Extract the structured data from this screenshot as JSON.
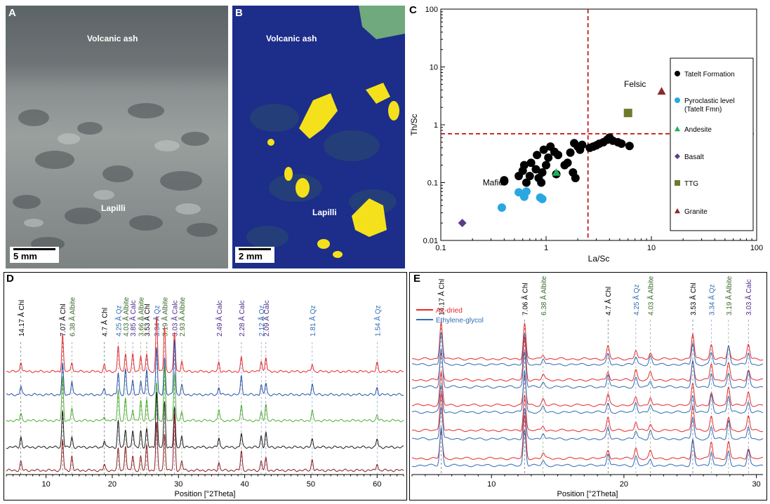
{
  "panels": {
    "a": {
      "letter": "A",
      "top_label": "Volcanic ash",
      "bottom_label": "Lapilli",
      "scale": "5 mm"
    },
    "b": {
      "letter": "B",
      "top_label": "Volcanic ash",
      "bottom_label": "Lapilli",
      "scale": "2 mm"
    },
    "c": {
      "letter": "C"
    },
    "d": {
      "letter": "D"
    },
    "e": {
      "letter": "E"
    }
  },
  "chart_data": [
    {
      "id": "C",
      "type": "scatter",
      "title": "",
      "xlabel": "La/Sc",
      "ylabel": "Th/Sc",
      "xscale": "log",
      "yscale": "log",
      "xlim": [
        0.1,
        100
      ],
      "ylim": [
        0.01,
        100
      ],
      "xticks": [
        "0.1",
        "1",
        "10",
        "100"
      ],
      "yticks": [
        "0.01",
        "0.1",
        "1",
        "10",
        "100"
      ],
      "reference_lines": {
        "x": 2.5,
        "y": 0.7,
        "style": "dashed",
        "color": "#c00000"
      },
      "annotations": [
        "Mafic",
        "Felsic"
      ],
      "legend_position": "right",
      "series": [
        {
          "name": "Tatelt Formation",
          "marker": "circle",
          "color": "#000000",
          "points": [
            [
              0.4,
              0.105
            ],
            [
              0.4,
              0.11
            ],
            [
              0.55,
              0.13
            ],
            [
              0.6,
              0.16
            ],
            [
              0.62,
              0.2
            ],
            [
              0.65,
              0.1
            ],
            [
              0.7,
              0.13
            ],
            [
              0.72,
              0.22
            ],
            [
              0.8,
              0.17
            ],
            [
              0.82,
              0.3
            ],
            [
              0.85,
              0.12
            ],
            [
              0.9,
              0.1
            ],
            [
              0.92,
              0.15
            ],
            [
              0.95,
              0.37
            ],
            [
              1.0,
              0.2
            ],
            [
              1.05,
              0.27
            ],
            [
              1.1,
              0.42
            ],
            [
              1.2,
              0.34
            ],
            [
              1.25,
              0.14
            ],
            [
              1.3,
              0.3
            ],
            [
              1.5,
              0.2
            ],
            [
              1.6,
              0.22
            ],
            [
              1.7,
              0.33
            ],
            [
              1.8,
              0.15
            ],
            [
              1.9,
              0.12
            ],
            [
              1.85,
              0.48
            ],
            [
              2.0,
              0.42
            ],
            [
              2.1,
              0.37
            ],
            [
              2.2,
              0.45
            ],
            [
              2.6,
              0.4
            ],
            [
              2.8,
              0.42
            ],
            [
              3.0,
              0.44
            ],
            [
              3.2,
              0.47
            ],
            [
              3.5,
              0.5
            ],
            [
              3.8,
              0.55
            ],
            [
              4.0,
              0.6
            ],
            [
              4.3,
              0.53
            ],
            [
              4.8,
              0.5
            ],
            [
              5.2,
              0.47
            ],
            [
              6.2,
              0.43
            ]
          ]
        },
        {
          "name": "Pyroclastic level (Tatelt Fmn)",
          "marker": "circle",
          "color": "#29a7e1",
          "points": [
            [
              0.38,
              0.037
            ],
            [
              0.55,
              0.068
            ],
            [
              0.62,
              0.057
            ],
            [
              0.65,
              0.07
            ],
            [
              0.88,
              0.055
            ],
            [
              0.92,
              0.052
            ]
          ]
        },
        {
          "name": "Andesite",
          "marker": "triangle",
          "color": "#1fb25a",
          "points": [
            [
              1.25,
              0.15
            ]
          ]
        },
        {
          "name": "Basalt",
          "marker": "diamond",
          "color": "#5b3c88",
          "points": [
            [
              0.16,
              0.02
            ]
          ]
        },
        {
          "name": "TTG",
          "marker": "square",
          "color": "#6b7b2a",
          "points": [
            [
              6.0,
              1.6
            ]
          ]
        },
        {
          "name": "Granite",
          "marker": "triangle",
          "color": "#8b2a2a",
          "points": [
            [
              12.5,
              3.8
            ]
          ]
        }
      ]
    },
    {
      "id": "D",
      "type": "line",
      "xlabel": "Position [°2Theta]",
      "xlim": [
        4,
        64
      ],
      "xticks": [
        "10",
        "20",
        "30",
        "40",
        "50",
        "60"
      ],
      "series_colors": [
        "#e8292b",
        "#2451a8",
        "#4caf2f",
        "#1a1a1a",
        "#8b1a1a"
      ],
      "peaks": [
        {
          "x": 6.2,
          "label": "14.17 Å Chl",
          "color": "#000000",
          "h": 0.18
        },
        {
          "x": 12.5,
          "label": "7.07 Å Chl",
          "color": "#000000",
          "h": 0.78
        },
        {
          "x": 13.9,
          "label": "6.38 Å Albite",
          "color": "#3a6a2a",
          "h": 0.25
        },
        {
          "x": 18.8,
          "label": "4.7 Å Chl",
          "color": "#000000",
          "h": 0.12
        },
        {
          "x": 20.9,
          "label": "4.25 Å Qz",
          "color": "#2f6bb3",
          "h": 0.55
        },
        {
          "x": 22.0,
          "label": "4.03 Å Albite",
          "color": "#3a6a2a",
          "h": 0.45
        },
        {
          "x": 23.1,
          "label": "3.85 Å Calc",
          "color": "#4b2a8a",
          "h": 0.3
        },
        {
          "x": 24.3,
          "label": "3.66 Å Albite",
          "color": "#3a6a2a",
          "h": 0.35
        },
        {
          "x": 25.2,
          "label": "3.53 Å Chl",
          "color": "#000000",
          "h": 0.45
        },
        {
          "x": 26.7,
          "label": "3.34 Å Qz",
          "color": "#2f6bb3",
          "h": 1.0
        },
        {
          "x": 27.9,
          "label": "3.19 Å Albite",
          "color": "#3a6a2a",
          "h": 0.95
        },
        {
          "x": 29.4,
          "label": "3.03 Å Calc",
          "color": "#4b2a8a",
          "h": 1.0
        },
        {
          "x": 30.5,
          "label": "2.93 Å Albite",
          "color": "#3a6a2a",
          "h": 0.2
        },
        {
          "x": 36.1,
          "label": "2.49 Å Calc",
          "color": "#4b2a8a",
          "h": 0.2
        },
        {
          "x": 39.5,
          "label": "2.28 Å Calc",
          "color": "#4b2a8a",
          "h": 0.35
        },
        {
          "x": 42.5,
          "label": "2.12 Å Qz",
          "color": "#2f6bb3",
          "h": 0.2
        },
        {
          "x": 43.2,
          "label": "2.09 Å Calc",
          "color": "#4b2a8a",
          "h": 0.3
        },
        {
          "x": 50.2,
          "label": "1.81 Å Qz",
          "color": "#2f6bb3",
          "h": 0.2
        },
        {
          "x": 60.0,
          "label": "1.54 Å Qz",
          "color": "#2f6bb3",
          "h": 0.15
        }
      ]
    },
    {
      "id": "E",
      "type": "line",
      "xlabel": "Position [°2Theta]",
      "xlim": [
        4,
        30.5
      ],
      "xticks": [
        "10",
        "20",
        "30"
      ],
      "legend": [
        {
          "name": "Air-dried",
          "color": "#e8292b"
        },
        {
          "name": "Ethylene-glycol",
          "color": "#2f6bb3"
        }
      ],
      "peaks": [
        {
          "x": 6.2,
          "label": "14.17 Å Chl",
          "color": "#000000",
          "h": 0.9
        },
        {
          "x": 12.5,
          "label": "7.06 Å Chl",
          "color": "#000000",
          "h": 1.0
        },
        {
          "x": 13.9,
          "label": "6.38 Å Albite",
          "color": "#3a6a2a",
          "h": 0.15
        },
        {
          "x": 18.8,
          "label": "4.7 Å Chl",
          "color": "#000000",
          "h": 0.3
        },
        {
          "x": 20.9,
          "label": "4.25 Å Qz",
          "color": "#2f6bb3",
          "h": 0.25
        },
        {
          "x": 22.0,
          "label": "4.03 Å Albite",
          "color": "#3a6a2a",
          "h": 0.2
        },
        {
          "x": 25.2,
          "label": "3.53 Å Chl",
          "color": "#000000",
          "h": 0.6
        },
        {
          "x": 26.6,
          "label": "3.34 Å Qz",
          "color": "#2f6bb3",
          "h": 0.4
        },
        {
          "x": 27.9,
          "label": "3.19 Å Albite",
          "color": "#3a6a2a",
          "h": 0.45
        },
        {
          "x": 29.4,
          "label": "3.03 Å Calc",
          "color": "#4b2a8a",
          "h": 0.35
        }
      ]
    }
  ]
}
